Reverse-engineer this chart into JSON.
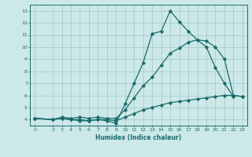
{
  "xlabel": "Humidex (Indice chaleur)",
  "bg_color": "#cce8e8",
  "grid_color": "#aacccc",
  "line_color": "#1a6b6b",
  "xlim": [
    -0.5,
    23.5
  ],
  "ylim": [
    3.5,
    13.5
  ],
  "xticks": [
    0,
    2,
    3,
    4,
    5,
    6,
    7,
    8,
    9,
    10,
    11,
    12,
    13,
    14,
    15,
    16,
    17,
    18,
    19,
    20,
    21,
    22,
    23
  ],
  "yticks": [
    4,
    5,
    6,
    7,
    8,
    9,
    10,
    11,
    12,
    13
  ],
  "series": [
    {
      "x": [
        0,
        2,
        3,
        4,
        5,
        6,
        7,
        8,
        9,
        10,
        11,
        12,
        13,
        14,
        15,
        16,
        17,
        18,
        19,
        20,
        21,
        22
      ],
      "y": [
        4.1,
        4.0,
        4.1,
        4.0,
        4.0,
        3.9,
        4.0,
        3.9,
        3.7,
        5.3,
        7.0,
        8.7,
        11.1,
        11.3,
        13.0,
        12.1,
        11.3,
        10.6,
        10.0,
        8.3,
        7.0,
        5.9
      ]
    },
    {
      "x": [
        0,
        2,
        3,
        4,
        5,
        6,
        7,
        8,
        9,
        10,
        11,
        12,
        13,
        14,
        15,
        16,
        17,
        18,
        19,
        20,
        21,
        22,
        23
      ],
      "y": [
        4.1,
        4.0,
        4.2,
        4.1,
        4.2,
        4.1,
        4.2,
        4.1,
        4.1,
        4.8,
        5.8,
        6.8,
        7.5,
        8.5,
        9.5,
        9.9,
        10.4,
        10.6,
        10.5,
        10.0,
        9.0,
        6.0,
        5.9
      ]
    },
    {
      "x": [
        0,
        2,
        3,
        4,
        5,
        6,
        7,
        8,
        9,
        10,
        11,
        12,
        13,
        14,
        15,
        16,
        17,
        18,
        19,
        20,
        21,
        22,
        23
      ],
      "y": [
        4.1,
        4.0,
        4.1,
        4.0,
        3.9,
        3.9,
        4.0,
        4.0,
        3.9,
        4.2,
        4.5,
        4.8,
        5.0,
        5.2,
        5.4,
        5.5,
        5.6,
        5.7,
        5.8,
        5.9,
        6.0,
        6.0,
        5.9
      ]
    }
  ]
}
